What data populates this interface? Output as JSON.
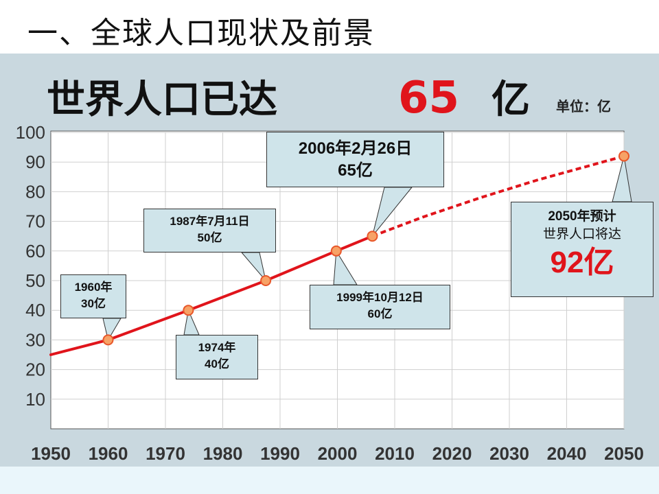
{
  "slide": {
    "title": "一、全球人口现状及前景"
  },
  "chart_title": {
    "main": "世界人口已达",
    "highlight": "65",
    "unit_char": "亿",
    "unit_label": "单位：亿"
  },
  "chart_data": {
    "type": "line",
    "title": "世界人口已达65亿",
    "unit": "单位：亿",
    "xlim": [
      1950,
      2050
    ],
    "ylim": [
      0,
      100
    ],
    "x_ticks": [
      1950,
      1960,
      1970,
      1980,
      1990,
      2000,
      2010,
      2020,
      2030,
      2040,
      2050
    ],
    "y_ticks": [
      10,
      20,
      30,
      40,
      50,
      60,
      70,
      80,
      90,
      100
    ],
    "grid": true,
    "series": [
      {
        "style": "solid",
        "color": "#e0141b",
        "x": [
          1950,
          1960,
          1974,
          1987.5,
          1999.8,
          2006.1
        ],
        "y": [
          25,
          30,
          40,
          50,
          60,
          65
        ]
      },
      {
        "style": "dashed",
        "color": "#e0141b",
        "x": [
          2006.1,
          2015,
          2025,
          2035,
          2050
        ],
        "y": [
          65,
          71.5,
          78,
          84,
          92
        ]
      }
    ],
    "points": [
      {
        "x": 1960,
        "y": 30
      },
      {
        "x": 1974,
        "y": 40
      },
      {
        "x": 1987.5,
        "y": 50
      },
      {
        "x": 1999.8,
        "y": 60
      },
      {
        "x": 2006.1,
        "y": 65
      },
      {
        "x": 2050,
        "y": 92
      }
    ],
    "annotations": [
      {
        "lines": [
          "1960年",
          "30亿"
        ]
      },
      {
        "lines": [
          "1974年",
          "40亿"
        ]
      },
      {
        "lines": [
          "1987年7月11日",
          "50亿"
        ]
      },
      {
        "lines": [
          "1999年10月12日",
          "60亿"
        ]
      },
      {
        "lines": [
          "2006年2月26日",
          "65亿"
        ]
      },
      {
        "lines": [
          "2050年预计",
          "世界人口将达",
          "92亿"
        ]
      }
    ]
  }
}
